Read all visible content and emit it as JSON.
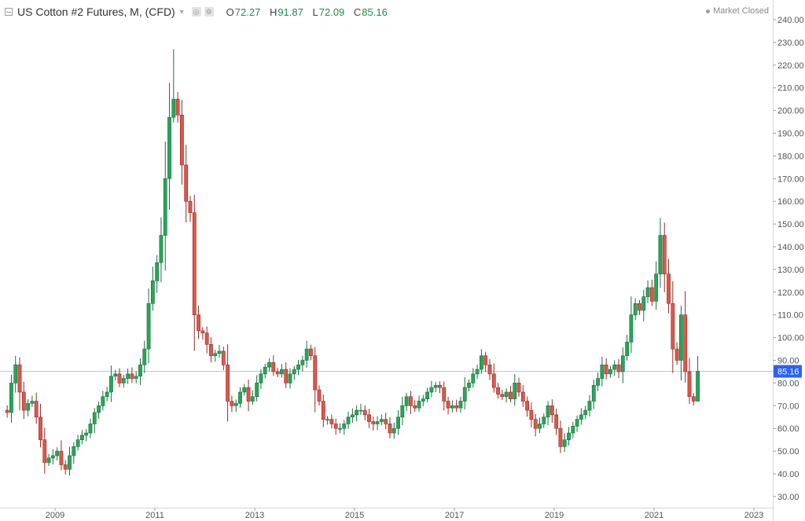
{
  "header": {
    "title": "US Cotton #2 Futures, M, (CFD)",
    "open_label": "O",
    "open": "72.27",
    "high_label": "H",
    "high": "91.87",
    "low_label": "L",
    "low": "72.09",
    "close_label": "C",
    "close": "85.16",
    "status": "Market Closed"
  },
  "chart_data": {
    "type": "candlestick",
    "title": "US Cotton #2 Futures, M, (CFD)",
    "interval": "monthly",
    "y_ticks": [
      30,
      40,
      50,
      60,
      70,
      80,
      90,
      100,
      110,
      120,
      130,
      140,
      150,
      160,
      170,
      180,
      190,
      200,
      210,
      220,
      230,
      240
    ],
    "y_tick_labels": [
      "30.00",
      "40.00",
      "50.00",
      "60.00",
      "70.00",
      "80.00",
      "90.00",
      "100.00",
      "110.00",
      "120.00",
      "130.00",
      "140.00",
      "150.00",
      "160.00",
      "170.00",
      "180.00",
      "190.00",
      "200.00",
      "210.00",
      "220.00",
      "230.00",
      "240.00"
    ],
    "ylim": [
      26,
      245
    ],
    "x_ticks": [
      "2009",
      "2011",
      "2013",
      "2015",
      "2017",
      "2019",
      "2021",
      "2023"
    ],
    "xlim_years": [
      2008.0,
      2023.1
    ],
    "last_price": 85.16,
    "last_price_label": "85.16",
    "colors": {
      "up": "#26a65b",
      "down": "#e0554a",
      "up_border": "#1d6e3d",
      "down_border": "#8d2f27",
      "last_price": "#2962ff"
    },
    "closes": [
      67,
      80,
      88,
      76,
      68,
      71,
      72,
      65,
      55,
      45,
      47,
      48,
      50,
      44,
      42,
      48,
      52,
      55,
      57,
      58,
      62,
      67,
      70,
      74,
      76,
      83,
      84,
      80,
      82,
      84,
      82,
      83,
      88,
      95,
      115,
      125,
      133,
      145,
      170,
      197,
      205,
      198,
      176,
      160,
      155,
      110,
      103,
      102,
      97,
      92,
      93,
      94,
      88,
      72,
      70,
      71,
      76,
      78,
      72,
      74,
      80,
      84,
      87,
      89,
      85,
      84,
      86,
      80,
      84,
      86,
      88,
      90,
      95,
      92,
      77,
      72,
      64,
      64,
      62,
      60,
      60,
      62,
      65,
      66,
      68,
      68,
      66,
      63,
      62,
      63,
      64,
      62,
      58,
      60,
      65,
      70,
      74,
      70,
      69,
      72,
      73,
      76,
      78,
      79,
      78,
      72,
      69,
      70,
      69,
      72,
      78,
      80,
      84,
      86,
      92,
      88,
      84,
      78,
      75,
      74,
      76,
      73,
      80,
      76,
      72,
      68,
      64,
      60,
      62,
      65,
      70,
      66,
      60,
      52,
      55,
      58,
      61,
      64,
      66,
      68,
      72,
      79,
      82,
      88,
      84,
      86,
      88,
      85,
      92,
      98,
      110,
      115,
      112,
      118,
      122,
      116,
      128,
      145,
      128,
      115,
      95,
      90,
      110,
      85,
      74,
      72,
      85.16
    ]
  }
}
